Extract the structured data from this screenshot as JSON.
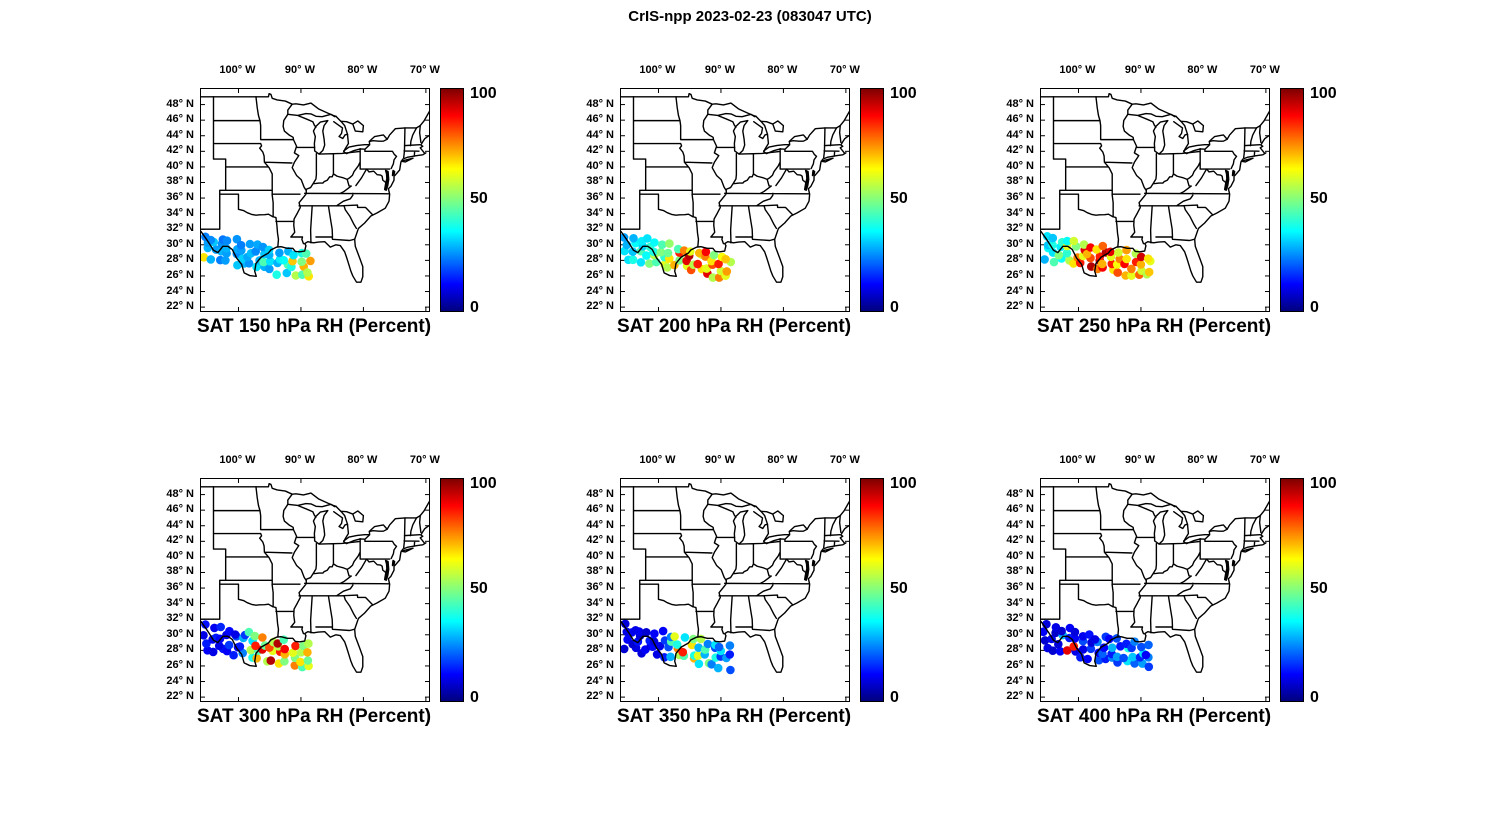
{
  "figure": {
    "title": "CrIS-npp 2023-02-23 (083047 UTC)",
    "satellite": "CrIS-npp",
    "date": "2023-02-23",
    "time_utc": "083047"
  },
  "axes": {
    "lon_ticks": {
      "labels": [
        "100° W",
        "90° W",
        "80° W",
        "70° W"
      ],
      "values": [
        -100,
        -90,
        -80,
        -70
      ]
    },
    "lat_ticks": {
      "labels": [
        "48° N",
        "46° N",
        "44° N",
        "42° N",
        "40° N",
        "38° N",
        "36° N",
        "34° N",
        "32° N",
        "30° N",
        "28° N",
        "26° N",
        "24° N",
        "22° N"
      ],
      "values": [
        48,
        46,
        44,
        42,
        40,
        38,
        36,
        34,
        32,
        30,
        28,
        26,
        24,
        22
      ]
    },
    "lon_range": [
      -106,
      -69.5
    ],
    "lat_range": [
      21.5,
      50
    ]
  },
  "colorbar": {
    "min": 0,
    "max": 100,
    "ticks": [
      100,
      50,
      0
    ],
    "tick_labels": [
      "100",
      "50",
      "0"
    ],
    "jet_stops": {
      "colors": [
        "#00007f",
        "#0000ff",
        "#00ffff",
        "#80ff80",
        "#ffff00",
        "#ff0000",
        "#800000"
      ],
      "positions": [
        0,
        12,
        36,
        50,
        64,
        88,
        100
      ]
    }
  },
  "swath": {
    "lon_start": -105.2,
    "lon_step": 1.17,
    "lat0": 29.7,
    "lat_slope": -0.18,
    "row_offsets": [
      -1.35,
      -0.45,
      0.45,
      1.35
    ],
    "rows": 4
  },
  "chart_data": [
    {
      "type": "scatter",
      "title": "SAT 150 hPa RH (Percent)",
      "level_hPa": 150,
      "variable": "RH",
      "units": "Percent",
      "value_range": [
        0,
        100
      ],
      "values": [
        65,
        30,
        28,
        25,
        30,
        28,
        32,
        26,
        25,
        30,
        27,
        24,
        28,
        28,
        30,
        26,
        32,
        26,
        29,
        27,
        30,
        33,
        28,
        25,
        27,
        29,
        31,
        28,
        35,
        30,
        26,
        29,
        30,
        45,
        32,
        27,
        28,
        35,
        30,
        33,
        40,
        30,
        36,
        28,
        32,
        45,
        38,
        30,
        55,
        40,
        68,
        35,
        45,
        70,
        50,
        40,
        65,
        55,
        72,
        45
      ]
    },
    {
      "type": "scatter",
      "title": "SAT 200 hPa RH (Percent)",
      "level_hPa": 200,
      "variable": "RH",
      "units": "Percent",
      "value_range": [
        0,
        100
      ],
      "values": [
        35,
        35,
        30,
        28,
        40,
        32,
        38,
        30,
        35,
        45,
        33,
        36,
        50,
        38,
        42,
        35,
        45,
        55,
        40,
        38,
        60,
        42,
        50,
        45,
        55,
        65,
        48,
        52,
        70,
        50,
        85,
        45,
        60,
        90,
        55,
        75,
        80,
        55,
        95,
        60,
        65,
        85,
        58,
        70,
        90,
        60,
        75,
        88,
        55,
        80,
        65,
        50,
        75,
        58,
        85,
        62,
        60,
        72,
        55,
        68
      ]
    },
    {
      "type": "scatter",
      "title": "SAT 250 hPa RH (Percent)",
      "level_hPa": 250,
      "variable": "RH",
      "units": "Percent",
      "value_range": [
        0,
        100
      ],
      "values": [
        30,
        38,
        32,
        35,
        45,
        35,
        40,
        32,
        38,
        50,
        36,
        42,
        55,
        42,
        60,
        38,
        65,
        75,
        50,
        58,
        85,
        60,
        90,
        55,
        95,
        80,
        70,
        88,
        75,
        92,
        85,
        65,
        88,
        70,
        95,
        78,
        65,
        85,
        60,
        90,
        80,
        62,
        75,
        58,
        70,
        88,
        65,
        72,
        60,
        75,
        85,
        55,
        78,
        58,
        70,
        92,
        55,
        68,
        60,
        65
      ]
    },
    {
      "type": "scatter",
      "title": "SAT 300 hPa RH (Percent)",
      "level_hPa": 300,
      "variable": "RH",
      "units": "Percent",
      "value_range": [
        0,
        100
      ],
      "values": [
        12,
        15,
        10,
        14,
        10,
        12,
        15,
        11,
        14,
        10,
        12,
        16,
        12,
        18,
        10,
        13,
        15,
        12,
        20,
        10,
        25,
        15,
        30,
        18,
        40,
        55,
        35,
        45,
        70,
        45,
        85,
        50,
        55,
        90,
        48,
        75,
        95,
        60,
        80,
        55,
        65,
        85,
        55,
        95,
        50,
        70,
        88,
        45,
        75,
        50,
        60,
        85,
        45,
        65,
        55,
        50,
        60,
        48,
        70,
        55
      ]
    },
    {
      "type": "scatter",
      "title": "SAT 350 hPa RH (Percent)",
      "level_hPa": 350,
      "variable": "RH",
      "units": "Percent",
      "value_range": [
        0,
        100
      ],
      "values": [
        8,
        12,
        10,
        9,
        10,
        8,
        12,
        10,
        9,
        14,
        8,
        11,
        12,
        9,
        15,
        8,
        10,
        13,
        9,
        12,
        15,
        10,
        18,
        12,
        30,
        20,
        45,
        25,
        55,
        75,
        40,
        60,
        45,
        85,
        null,
        35,
        70,
        40,
        65,
        50,
        35,
        60,
        30,
        55,
        50,
        30,
        45,
        25,
        25,
        40,
        20,
        35,
        30,
        18,
        35,
        22,
        20,
        28,
        15,
        25
      ]
    },
    {
      "type": "scatter",
      "title": "SAT 400 hPa RH (Percent)",
      "level_hPa": 400,
      "variable": "RH",
      "units": "Percent",
      "value_range": [
        0,
        100
      ],
      "values": [
        10,
        8,
        12,
        9,
        8,
        11,
        7,
        10,
        12,
        9,
        30,
        8,
        90,
        null,
        15,
        12,
        10,
        85,
        12,
        9,
        15,
        10,
        20,
        11,
        12,
        18,
        9,
        14,
        20,
        12,
        25,
        10,
        15,
        22,
        12,
        18,
        25,
        15,
        30,
        12,
        18,
        28,
        14,
        20,
        35,
        20,
        40,
        15,
        22,
        32,
        18,
        25,
        28,
        16,
        35,
        20,
        18,
        25,
        12,
        22
      ]
    }
  ]
}
